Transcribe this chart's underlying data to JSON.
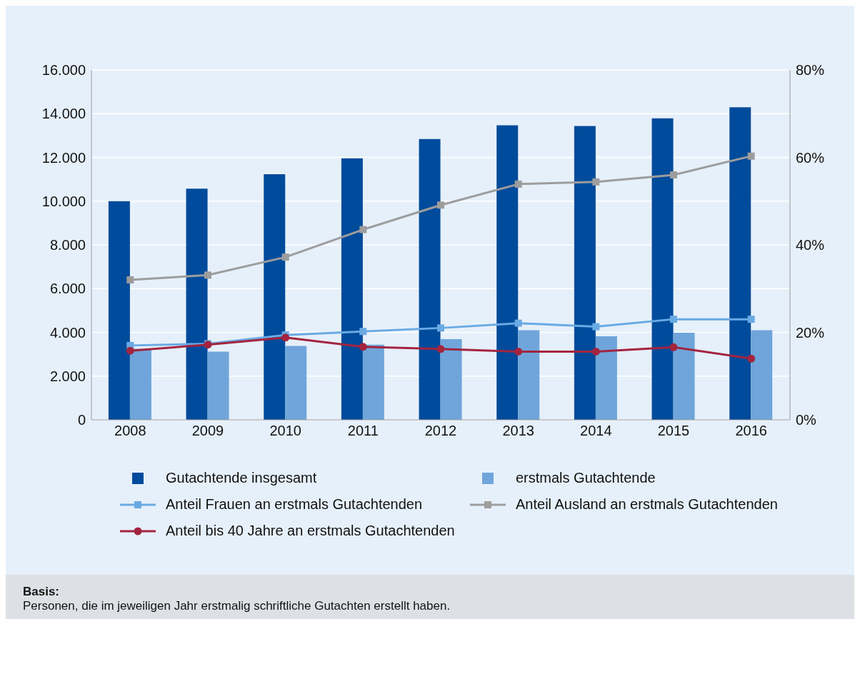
{
  "chart_data": {
    "type": "bar",
    "categories": [
      "2008",
      "2009",
      "2010",
      "2011",
      "2012",
      "2013",
      "2014",
      "2015",
      "2016"
    ],
    "series": [
      {
        "name": "Gutachtende insgesamt",
        "color": "#004b9b",
        "values": [
          10000,
          10570,
          11230,
          11960,
          12840,
          13470,
          13440,
          13790,
          14290
        ]
      },
      {
        "name": "erstmals Gutachtende",
        "color": "#6fa5da",
        "values": [
          3250,
          3120,
          3380,
          3440,
          3690,
          4100,
          3820,
          3980,
          4100
        ]
      },
      {
        "name": "Anteil Frauen an erstmals Gutachtenden",
        "type": "line",
        "axis": "y2",
        "marker": "square",
        "color": "#6aaae4",
        "values": [
          17.0,
          17.4,
          19.4,
          20.2,
          21.0,
          22.1,
          21.3,
          23.0,
          23.0
        ]
      },
      {
        "name": "Anteil Ausland an erstmals Gutachtenden",
        "type": "line",
        "axis": "y2",
        "marker": "square",
        "color": "#9d9d9d",
        "values": [
          32.0,
          33.1,
          37.2,
          43.5,
          49.1,
          53.9,
          54.4,
          56.0,
          60.3
        ]
      },
      {
        "name": "Anteil bis 40 Jahre an erstmals Gutachtenden",
        "type": "line",
        "axis": "y2",
        "marker": "circle",
        "color": "#a3243f",
        "values": [
          15.8,
          17.2,
          18.8,
          16.7,
          16.2,
          15.6,
          15.6,
          16.6,
          14.0
        ]
      }
    ],
    "ylim": [
      0,
      16000
    ],
    "yticks": [
      {
        "value": 0,
        "label": "0"
      },
      {
        "value": 2000,
        "label": "2.000"
      },
      {
        "value": 4000,
        "label": "4.000"
      },
      {
        "value": 6000,
        "label": "6.000"
      },
      {
        "value": 8000,
        "label": "8.000"
      },
      {
        "value": 10000,
        "label": "10.000"
      },
      {
        "value": 12000,
        "label": "12.000"
      },
      {
        "value": 14000,
        "label": "14.000"
      },
      {
        "value": 16000,
        "label": "16.000"
      }
    ],
    "y2lim": [
      0,
      80
    ],
    "y2ticks": [
      {
        "value": 0,
        "label": "0%"
      },
      {
        "value": 20,
        "label": "20%"
      },
      {
        "value": 40,
        "label": "40%"
      },
      {
        "value": 60,
        "label": "60%"
      },
      {
        "value": 80,
        "label": "80%"
      }
    ],
    "grid": "y",
    "legend": "bottom",
    "annotations": [
      "Basis:",
      "Personen, die im jeweiligen Jahr erstmalig schriftliche Gutachten erstellt haben."
    ]
  }
}
